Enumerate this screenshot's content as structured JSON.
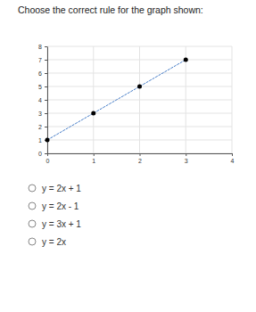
{
  "question": "Choose the correct rule for the graph shown:",
  "options": [
    "y = 2x + 1",
    "y = 2x - 1",
    "y = 3x + 1",
    "y = 2x"
  ],
  "chart_data": {
    "type": "line",
    "x": [
      0,
      1,
      2,
      3
    ],
    "values": [
      1,
      3,
      5,
      7
    ],
    "color": "#4a7fc9",
    "marker": "circle",
    "xlim": [
      0,
      4
    ],
    "ylim": [
      0,
      8
    ],
    "xticks": [
      0,
      1,
      2,
      3,
      4
    ],
    "yticks": [
      0,
      1,
      2,
      3,
      4,
      5,
      6,
      7,
      8
    ],
    "grid": true
  }
}
